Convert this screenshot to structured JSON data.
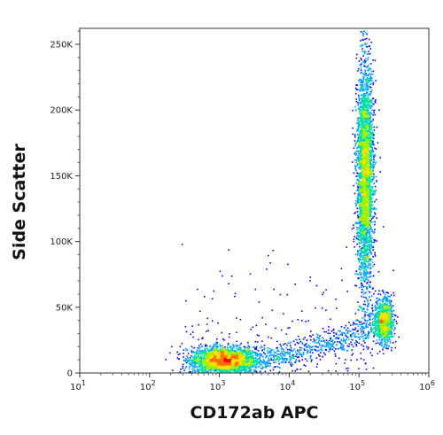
{
  "chart_data": {
    "type": "scatter",
    "xlabel": "CD172ab APC",
    "ylabel": "Side Scatter",
    "x_scale": "log",
    "xlim": [
      10,
      1000000
    ],
    "ylim": [
      0,
      262144
    ],
    "grid": false,
    "x_ticks": [
      {
        "value": 10,
        "base": "10",
        "exp": "1"
      },
      {
        "value": 100,
        "base": "10",
        "exp": "2"
      },
      {
        "value": 1000,
        "base": "10",
        "exp": "3"
      },
      {
        "value": 10000,
        "base": "10",
        "exp": "4"
      },
      {
        "value": 100000,
        "base": "10",
        "exp": "5"
      },
      {
        "value": 1000000,
        "base": "10",
        "exp": "6"
      }
    ],
    "y_ticks": [
      {
        "value": 0,
        "label": "0"
      },
      {
        "value": 50000,
        "label": "50K"
      },
      {
        "value": 100000,
        "label": "100K"
      },
      {
        "value": 150000,
        "label": "150K"
      },
      {
        "value": 200000,
        "label": "200K"
      },
      {
        "value": 250000,
        "label": "250K"
      }
    ],
    "color_scale": [
      "#0000ff",
      "#00a0ff",
      "#00e0a0",
      "#a0f000",
      "#ffe000",
      "#ff7000",
      "#ff0000"
    ],
    "populations": [
      {
        "log10_x_center": 3.05,
        "y_center": 10000,
        "log10_x_spread": 0.22,
        "y_spread": 5000,
        "count": 2600
      },
      {
        "log10_x_center": 5.08,
        "y_center": 150000,
        "log10_x_spread": 0.06,
        "y_spread": 42000,
        "count": 3200
      },
      {
        "log10_x_center": 5.35,
        "y_center": 40000,
        "log10_x_spread": 0.07,
        "y_spread": 9000,
        "count": 900
      }
    ]
  }
}
